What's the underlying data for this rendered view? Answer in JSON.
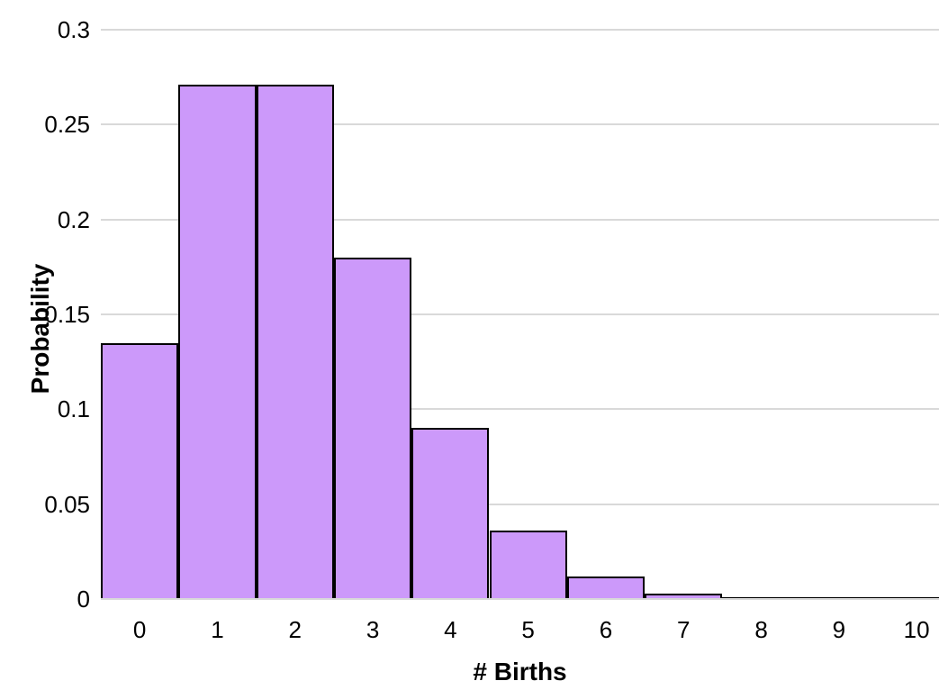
{
  "chart_data": {
    "type": "bar",
    "subtype": "histogram",
    "title": "",
    "xlabel": "# Births",
    "ylabel": "Probability",
    "categories": [
      "0",
      "1",
      "2",
      "3",
      "4",
      "5",
      "6",
      "7",
      "8",
      "9",
      "10"
    ],
    "values": [
      0.135,
      0.271,
      0.271,
      0.18,
      0.09,
      0.036,
      0.012,
      0.003,
      0.001,
      0.0002,
      4e-05
    ],
    "ylim": [
      0,
      0.3
    ],
    "yticks": [
      0,
      0.05,
      0.1,
      0.15,
      0.2,
      0.25,
      0.3
    ],
    "ytick_labels": [
      "0",
      "0.05",
      "0.1",
      "0.15",
      "0.2",
      "0.25",
      "0.3"
    ],
    "grid": "horizontal",
    "legend": "none",
    "bars_touching": true,
    "colors": {
      "bar_fill": "#CC99FA",
      "bar_border": "#000000",
      "gridline": "#D9D9D9",
      "axis_line": "#D9D9D9",
      "text": "#000000",
      "background": "#FFFFFF"
    }
  }
}
